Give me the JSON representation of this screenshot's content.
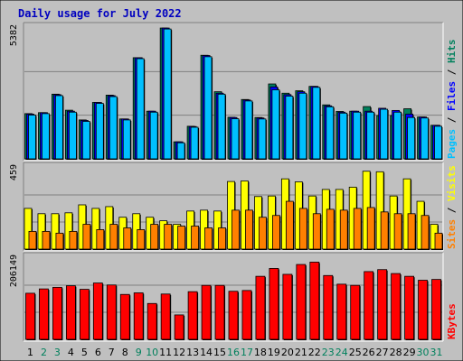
{
  "title": "Daily usage for July 2022",
  "colors": {
    "background": "#C0C0C0",
    "page": "#FFFFFF",
    "title": "#0000C0",
    "hits": "#00805C",
    "files": "#0000FF",
    "pages": "#00C0FF",
    "visits": "#FFFF00",
    "sites": "#FF8000",
    "kbytes": "#FF0000",
    "weekend_label": "#00805C",
    "weekday_label": "#000000"
  },
  "chart_data": {
    "type": "bar",
    "categories": [
      "1",
      "2",
      "3",
      "4",
      "5",
      "6",
      "7",
      "8",
      "9",
      "10",
      "11",
      "12",
      "13",
      "14",
      "15",
      "16",
      "17",
      "18",
      "19",
      "20",
      "21",
      "22",
      "23",
      "24",
      "25",
      "26",
      "27",
      "28",
      "29",
      "30",
      "31"
    ],
    "weekend_days": [
      "2",
      "3",
      "9",
      "10",
      "16",
      "17",
      "23",
      "24",
      "30",
      "31"
    ],
    "panels": [
      {
        "max_label": "5382",
        "max": 5382,
        "legend": [
          {
            "text": "Hits",
            "color_key": "hits"
          },
          {
            "text": "Files",
            "color_key": "files"
          },
          {
            "text": "Pages",
            "color_key": "pages"
          }
        ],
        "series": [
          {
            "name": "Hits",
            "color_key": "hits",
            "values": [
              1860,
              1900,
              2660,
              2000,
              1600,
              2320,
              2620,
              1640,
              4160,
              1960,
              5380,
              700,
              1340,
              4260,
              2760,
              1710,
              2440,
              1700,
              3080,
              2700,
              2800,
              2980,
              2220,
              1950,
              1960,
              2150,
              1780,
              1780,
              2060,
              1720,
              1380
            ]
          },
          {
            "name": "Files",
            "color_key": "files",
            "values": [
              1840,
              1900,
              2640,
              1960,
              1580,
              2320,
              2600,
              1640,
              4160,
              1960,
              5380,
              700,
              1330,
              4250,
              2700,
              1700,
              2420,
              1680,
              2960,
              2640,
              2760,
              2980,
              2180,
              1920,
              1960,
              1960,
              2080,
              1990,
              1840,
              1720,
              1380
            ]
          },
          {
            "name": "Pages",
            "color_key": "pages",
            "values": [
              1800,
              1860,
              2600,
              1920,
              1540,
              2280,
              2560,
              1600,
              4120,
              1920,
              5340,
              660,
              1300,
              4200,
              2660,
              1650,
              2380,
              1640,
              2840,
              2580,
              2700,
              2940,
              2140,
              1880,
              1920,
              1920,
              2040,
              1920,
              1700,
              1680,
              1340
            ]
          }
        ]
      },
      {
        "max_label": "459",
        "max": 459,
        "legend": [
          {
            "text": "Visits",
            "color_key": "visits"
          },
          {
            "text": "Sites",
            "color_key": "sites"
          }
        ],
        "series": [
          {
            "name": "Visits",
            "color_key": "visits",
            "values": [
              230,
              200,
              200,
              205,
              250,
              230,
              240,
              180,
              200,
              180,
              160,
              140,
              215,
              220,
              215,
              382,
              385,
              297,
              300,
              397,
              380,
              300,
              337,
              337,
              350,
              440,
              437,
              300,
              397,
              270,
              140
            ]
          },
          {
            "name": "Sites",
            "color_key": "sites",
            "values": [
              100,
              100,
              90,
              100,
              140,
              110,
              140,
              120,
              110,
              140,
              140,
              130,
              130,
              120,
              120,
              220,
              220,
              180,
              190,
              270,
              230,
              200,
              225,
              220,
              230,
              235,
              210,
              200,
              200,
              190,
              90
            ]
          }
        ]
      },
      {
        "max_label": "206149",
        "max": 206149,
        "legend": [
          {
            "text": "KBytes",
            "color_key": "kbytes"
          }
        ],
        "series": [
          {
            "name": "KBytes",
            "color_key": "kbytes",
            "values": [
              117000,
              128000,
              132000,
              136000,
              127000,
              143000,
              138000,
              114000,
              118000,
              91000,
              115000,
              62000,
              121000,
              137000,
              137000,
              122000,
              124000,
              160000,
              180000,
              165000,
              190000,
              196000,
              162000,
              140000,
              137000,
              172000,
              177000,
              167000,
              160000,
              150000,
              152000
            ]
          }
        ]
      }
    ]
  }
}
